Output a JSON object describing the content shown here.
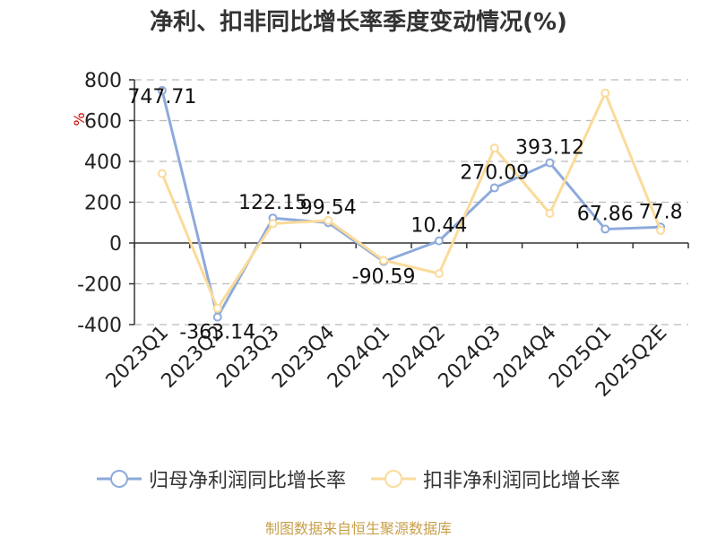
{
  "title": "净利、扣非同比增长率季度变动情况(%)",
  "source": "制图数据来自恒生聚源数据库",
  "colors": {
    "series1": "#8eaadb",
    "series2": "#fadb9a",
    "grid": "#bbbbbb",
    "axis": "#333333",
    "unit": "#cc0000"
  },
  "chart_data": {
    "type": "line",
    "title": "净利、扣非同比增长率季度变动情况(%)",
    "ylabel": "%",
    "xlabel": "",
    "ylim": [
      -400,
      800
    ],
    "yticks": [
      -400,
      -200,
      0,
      200,
      400,
      600,
      800
    ],
    "ytick_labels": [
      "-400",
      "-200",
      "0",
      "200",
      "400",
      "600",
      "800"
    ],
    "grid": true,
    "legend_position": "bottom",
    "categories": [
      "2023Q1",
      "2023Q2",
      "2023Q3",
      "2023Q4",
      "2024Q1",
      "2024Q2",
      "2024Q3",
      "2024Q4",
      "2025Q1",
      "2025Q2E"
    ],
    "series": [
      {
        "name": "归母净利润同比增长率",
        "values": [
          747.71,
          -363.14,
          122.15,
          99.54,
          -90.59,
          10.44,
          270.09,
          393.12,
          67.86,
          77.8
        ],
        "labels": [
          "747.71",
          "-363.14",
          "122.15",
          "99.54",
          "-90.59",
          "10.44",
          "270.09",
          "393.12",
          "67.86",
          "77.8"
        ]
      },
      {
        "name": "扣非净利润同比增长率",
        "values": [
          340,
          -320,
          95,
          110,
          -85,
          -150,
          465,
          145,
          735,
          62
        ]
      }
    ]
  }
}
